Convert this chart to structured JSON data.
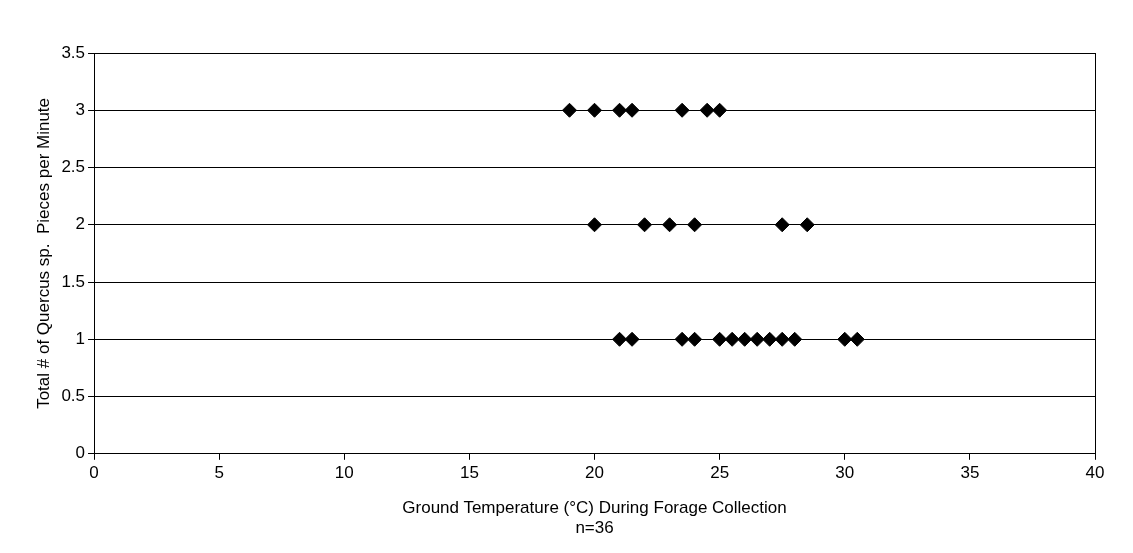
{
  "chart_data": {
    "type": "scatter",
    "xlabel": "Ground Temperature (°C) During Forage Collection",
    "ylabel": "Total # of Quercus sp.  Pieces per Minute",
    "annotations": [
      "n=36"
    ],
    "x": [
      19,
      20,
      21,
      21.5,
      23.5,
      24.5,
      25,
      20,
      22,
      23,
      24,
      27.5,
      28.5,
      21,
      21.5,
      23.5,
      24,
      25,
      25.5,
      26,
      26.5,
      27,
      27.5,
      28,
      30,
      30.5
    ],
    "values": [
      3,
      3,
      3,
      3,
      3,
      3,
      3,
      2,
      2,
      2,
      2,
      2,
      2,
      1,
      1,
      1,
      1,
      1,
      1,
      1,
      1,
      1,
      1,
      1,
      1,
      1
    ],
    "color": "#000000",
    "marker": "diamond",
    "xlim": [
      0,
      40
    ],
    "xticks": [
      0,
      5,
      10,
      15,
      20,
      25,
      30,
      35,
      40
    ],
    "ylim": [
      0,
      3.5
    ],
    "yticks": [
      0,
      0.5,
      1,
      1.5,
      2,
      2.5,
      3,
      3.5
    ],
    "grid": "y",
    "legend": false
  }
}
